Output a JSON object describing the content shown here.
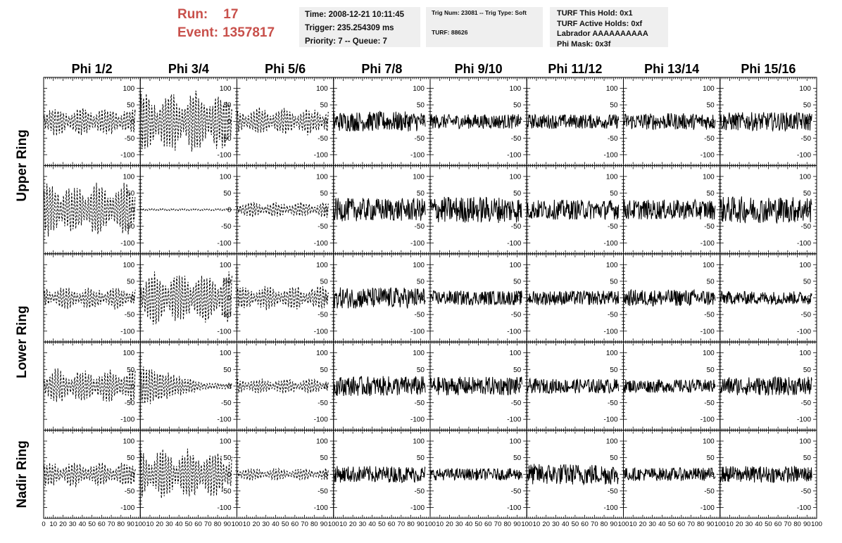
{
  "header": {
    "run_label": "Run:",
    "run_value": "17",
    "event_label": "Event:",
    "event_value": "1357817",
    "info1": {
      "time": "Time: 2008-12-21 10:11:45",
      "trigger": "Trigger: 235.254309 ms",
      "priority": "Priority: 7 -- Queue: 7"
    },
    "info2": {
      "trig": "Trig Num: 23081 -- Trig Type: Soft",
      "turf": "TURF: 88626"
    },
    "info3": {
      "hold": "TURF This Hold: 0x1",
      "active": "TURF Active Holds: 0xf",
      "labrador": "Labrador AAAAAAAAAA",
      "phimask": "Phi Mask: 0x3f"
    }
  },
  "colors": {
    "run_text": "#c8504b",
    "info_bg": "#efefef",
    "trace": "#000000"
  },
  "chart_data": {
    "type": "line",
    "columns": [
      "Phi 1/2",
      "Phi 3/4",
      "Phi 5/6",
      "Phi 7/8",
      "Phi 9/10",
      "Phi 11/12",
      "Phi 13/14",
      "Phi 15/16"
    ],
    "ring_labels": [
      {
        "text": "Upper Ring",
        "rows": [
          0,
          1
        ]
      },
      {
        "text": "Lower Ring",
        "rows": [
          2,
          3
        ]
      },
      {
        "text": "Nadir Ring",
        "rows": [
          4,
          4
        ]
      }
    ],
    "xlim": [
      0,
      100
    ],
    "ylim": [
      -120,
      120
    ],
    "x_ticks": [
      0,
      10,
      20,
      30,
      40,
      50,
      60,
      70,
      80,
      90,
      100
    ],
    "y_ticks": [
      -100,
      -50,
      0,
      50,
      100
    ],
    "x_data_range": [
      0,
      95
    ],
    "panels": [
      [
        {
          "style": "dashed",
          "amp": 45,
          "env": "bursty"
        },
        {
          "style": "dashed",
          "amp": 100,
          "env": "bursty"
        },
        {
          "style": "dashed",
          "amp": 45,
          "env": "bursty"
        },
        {
          "style": "solid",
          "amp": 30,
          "env": "noise"
        },
        {
          "style": "solid",
          "amp": 22,
          "env": "noise"
        },
        {
          "style": "solid",
          "amp": 22,
          "env": "noise"
        },
        {
          "style": "solid",
          "amp": 25,
          "env": "noise"
        },
        {
          "style": "solid",
          "amp": 28,
          "env": "noise"
        }
      ],
      [
        {
          "style": "dashed",
          "amp": 85,
          "env": "bursty"
        },
        {
          "style": "dashed",
          "amp": 3,
          "env": "flat"
        },
        {
          "style": "dashed",
          "amp": 25,
          "env": "bursty"
        },
        {
          "style": "solid",
          "amp": 35,
          "env": "noise"
        },
        {
          "style": "solid",
          "amp": 40,
          "env": "noise"
        },
        {
          "style": "solid",
          "amp": 30,
          "env": "noise"
        },
        {
          "style": "solid",
          "amp": 30,
          "env": "noise"
        },
        {
          "style": "solid",
          "amp": 40,
          "env": "noise"
        }
      ],
      [
        {
          "style": "dashed",
          "amp": 35,
          "env": "bursty"
        },
        {
          "style": "dashed",
          "amp": 85,
          "env": "bursty"
        },
        {
          "style": "dashed",
          "amp": 40,
          "env": "bursty"
        },
        {
          "style": "solid",
          "amp": 32,
          "env": "noise"
        },
        {
          "style": "solid",
          "amp": 22,
          "env": "noise"
        },
        {
          "style": "solid",
          "amp": 22,
          "env": "noise"
        },
        {
          "style": "solid",
          "amp": 25,
          "env": "noise"
        },
        {
          "style": "solid",
          "amp": 20,
          "env": "noise"
        }
      ],
      [
        {
          "style": "dashed",
          "amp": 55,
          "env": "bursty"
        },
        {
          "style": "dashed",
          "amp": 65,
          "env": "decay"
        },
        {
          "style": "dashed",
          "amp": 25,
          "env": "bursty"
        },
        {
          "style": "solid",
          "amp": 30,
          "env": "noise"
        },
        {
          "style": "solid",
          "amp": 28,
          "env": "noise"
        },
        {
          "style": "solid",
          "amp": 22,
          "env": "noise"
        },
        {
          "style": "solid",
          "amp": 20,
          "env": "noise"
        },
        {
          "style": "solid",
          "amp": 28,
          "env": "noise"
        }
      ],
      [
        {
          "style": "dashed",
          "amp": 40,
          "env": "bursty"
        },
        {
          "style": "dashed",
          "amp": 80,
          "env": "bursty"
        },
        {
          "style": "dashed",
          "amp": 20,
          "env": "bursty"
        },
        {
          "style": "solid",
          "amp": 25,
          "env": "noise"
        },
        {
          "style": "solid",
          "amp": 18,
          "env": "noise"
        },
        {
          "style": "solid",
          "amp": 32,
          "env": "noise"
        },
        {
          "style": "solid",
          "amp": 20,
          "env": "noise"
        },
        {
          "style": "solid",
          "amp": 25,
          "env": "noise"
        }
      ]
    ]
  }
}
